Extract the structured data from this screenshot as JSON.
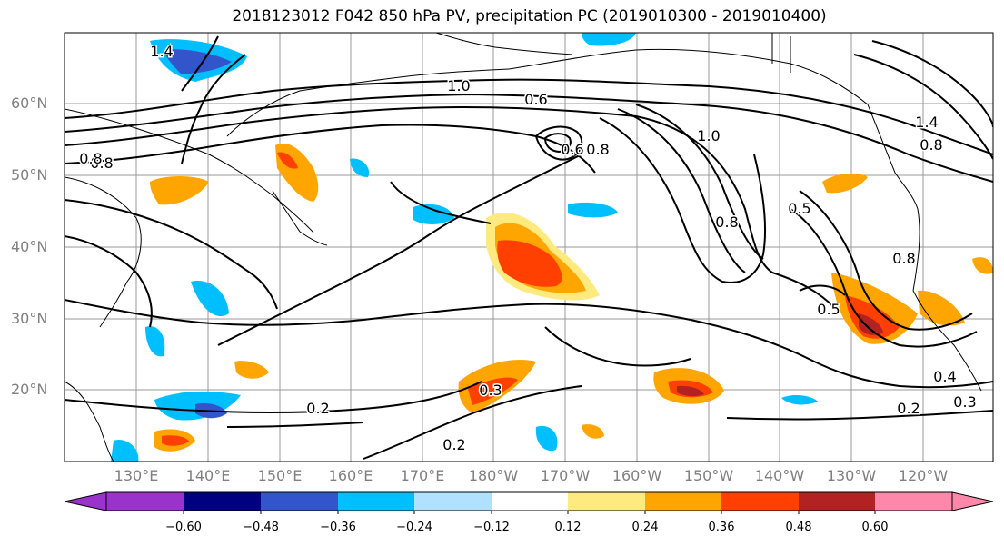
{
  "title": "2018123012 F042 850 hPa PV, precipitation PC (2019010300 - 2019010400)",
  "map": {
    "lat_labels": [
      "60°N",
      "50°N",
      "40°N",
      "30°N",
      "20°N"
    ],
    "lon_labels": [
      "130°E",
      "140°E",
      "150°E",
      "160°E",
      "170°E",
      "180°W",
      "170°W",
      "160°W",
      "150°W",
      "140°W",
      "130°W",
      "120°W"
    ],
    "contour_labels": [
      "1.4",
      "0.8",
      "1.0",
      "0.6",
      "0.8",
      "1.0",
      "0.8",
      "0.5",
      "0.8",
      "0.5",
      "0.4",
      "0.3",
      "0.2",
      "0.3",
      "0.2",
      "0.2",
      "0.8",
      "0.8",
      "1.4",
      "0.6"
    ]
  },
  "colorbar": {
    "ticks": [
      "−0.60",
      "−0.48",
      "−0.36",
      "−0.24",
      "−0.12",
      "0.12",
      "0.24",
      "0.36",
      "0.48",
      "0.60"
    ],
    "colors": [
      "#9933cc",
      "#000080",
      "#3355cc",
      "#00bfff",
      "#b0e2ff",
      "#ffffff",
      "#ffea80",
      "#ffa500",
      "#ff4000",
      "#b22222",
      "#ff88aa"
    ]
  }
}
